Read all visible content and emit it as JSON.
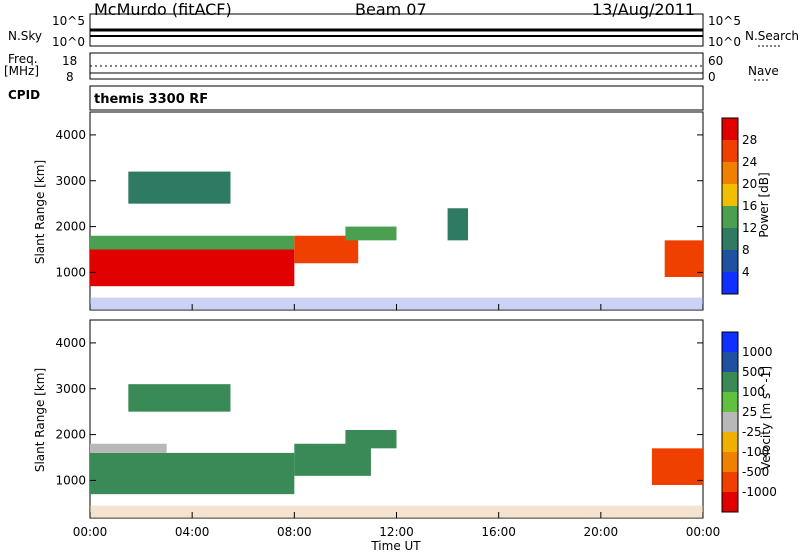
{
  "header": {
    "site": "McMurdo (fitACF)",
    "beam": "Beam 07",
    "date": "13/Aug/2011"
  },
  "top_panels": {
    "nsky_label": "N.Sky",
    "nsearch_label": "N.Search",
    "nsky_ticks": [
      "10^5",
      "10^0"
    ],
    "nsearch_ticks": [
      "10^5",
      "10^0"
    ],
    "freq_label_1": "Freq.",
    "freq_label_2": "[MHz]",
    "freq_ticks": [
      "18",
      "8"
    ],
    "nave_label": "Nave",
    "nave_ticks": [
      "60",
      "0"
    ],
    "cpid_label": "CPID",
    "cpid_value": "themis 3300 RF"
  },
  "colors": {
    "power_scale": [
      "#1030ff",
      "#2050a0",
      "#2e7a62",
      "#4aa050",
      "#f0c000",
      "#f08000",
      "#f04000",
      "#e00000"
    ],
    "velocity_scale": [
      "#e00000",
      "#f04000",
      "#f08000",
      "#f0b000",
      "#b8b8b8",
      "#60c040",
      "#3a8a58",
      "#2050a0",
      "#1030ff"
    ]
  },
  "chart_data": [
    {
      "type": "heatmap",
      "title": "",
      "xlabel": "Time UT",
      "ylabel": "Slant Range [km]",
      "xlim": [
        "00:00",
        "24:00"
      ],
      "ylim": [
        180,
        4500
      ],
      "x_ticks": [
        "00:00",
        "04:00",
        "08:00",
        "12:00",
        "16:00",
        "20:00",
        "00:00"
      ],
      "y_ticks": [
        1000,
        2000,
        3000,
        4000
      ],
      "colorbar": {
        "label": "Power [dB]",
        "ticks": [
          4,
          8,
          12,
          16,
          20,
          24,
          28
        ],
        "range": [
          0,
          30
        ]
      },
      "regions": [
        {
          "t": [
            0.0,
            8.0
          ],
          "range_km": [
            700,
            1500
          ],
          "value_db": 28
        },
        {
          "t": [
            0.0,
            8.0
          ],
          "range_km": [
            1500,
            1800
          ],
          "value_db": 12
        },
        {
          "t": [
            8.0,
            10.5
          ],
          "range_km": [
            1200,
            1800
          ],
          "value_db": 26
        },
        {
          "t": [
            10.0,
            12.0
          ],
          "range_km": [
            1700,
            2000
          ],
          "value_db": 14
        },
        {
          "t": [
            14.0,
            14.8
          ],
          "range_km": [
            1700,
            2400
          ],
          "value_db": 10
        },
        {
          "t": [
            22.5,
            24.0
          ],
          "range_km": [
            900,
            1700
          ],
          "value_db": 26
        },
        {
          "t": [
            1.5,
            5.5
          ],
          "range_km": [
            2500,
            3200
          ],
          "value_db": 8
        }
      ]
    },
    {
      "type": "heatmap",
      "title": "",
      "xlabel": "Time UT",
      "ylabel": "Slant Range [km]",
      "xlim": [
        "00:00",
        "24:00"
      ],
      "ylim": [
        180,
        4500
      ],
      "x_ticks": [
        "00:00",
        "04:00",
        "08:00",
        "12:00",
        "16:00",
        "20:00",
        "00:00"
      ],
      "y_ticks": [
        1000,
        2000,
        3000,
        4000
      ],
      "colorbar": {
        "label": "Velocity [m s^-1]",
        "ticks": [
          1000,
          500,
          100,
          25,
          -25,
          -100,
          -500,
          -1000
        ]
      },
      "regions": [
        {
          "t": [
            0.0,
            8.0
          ],
          "range_km": [
            700,
            1600
          ],
          "value_ms": 200
        },
        {
          "t": [
            0.0,
            3.0
          ],
          "range_km": [
            1600,
            1800
          ],
          "value_ms": 0
        },
        {
          "t": [
            8.0,
            11.0
          ],
          "range_km": [
            1100,
            1800
          ],
          "value_ms": 150
        },
        {
          "t": [
            10.0,
            12.0
          ],
          "range_km": [
            1700,
            2100
          ],
          "value_ms": 120
        },
        {
          "t": [
            22.0,
            24.0
          ],
          "range_km": [
            900,
            1700
          ],
          "value_ms": -200
        },
        {
          "t": [
            1.5,
            5.5
          ],
          "range_km": [
            2500,
            3100
          ],
          "value_ms": 150
        }
      ]
    }
  ]
}
